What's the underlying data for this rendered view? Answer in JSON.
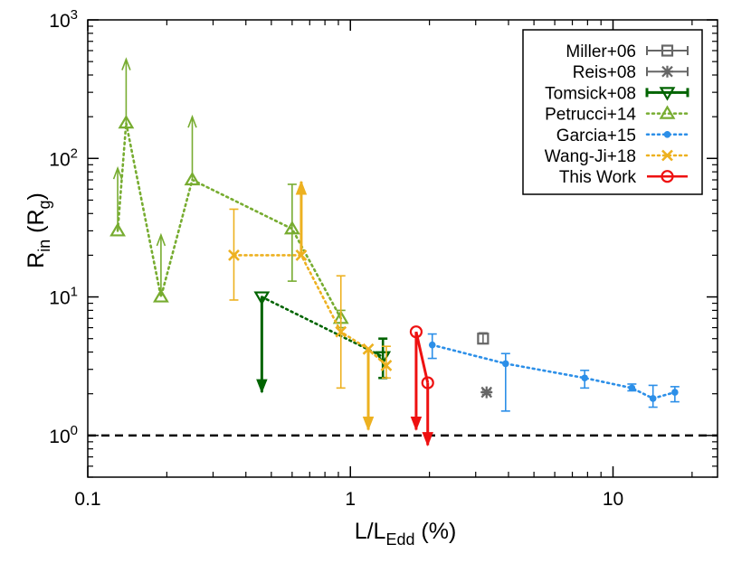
{
  "chart_data": {
    "type": "scatter",
    "xlabel": {
      "main": "L/L",
      "sub": "Edd",
      "suffix": " (%)"
    },
    "ylabel": {
      "main": "R",
      "sub": "in",
      "paren_open": " (R",
      "paren_sub": "g",
      "paren_close": ")"
    },
    "x_scale": "log",
    "y_scale": "log",
    "xlim": [
      0.1,
      25
    ],
    "ylim": [
      0.5,
      1000
    ],
    "x_ticks": [
      {
        "v": 0.1,
        "label": "0.1"
      },
      {
        "v": 1,
        "label": "1"
      },
      {
        "v": 10,
        "label": "10"
      }
    ],
    "y_ticks": [
      {
        "v": 1,
        "base": "10",
        "exp": "0"
      },
      {
        "v": 10,
        "base": "10",
        "exp": "1"
      },
      {
        "v": 100,
        "base": "10",
        "exp": "2"
      },
      {
        "v": 1000,
        "base": "10",
        "exp": "3"
      }
    ],
    "reference_line": {
      "y": 1,
      "style": "dashed",
      "color": "#000000"
    },
    "legend_position": "top-right",
    "series": [
      {
        "name": "Miller+06",
        "color": "#666666",
        "marker": "square",
        "connect": false,
        "points": [
          {
            "x": 3.2,
            "y": 5.0,
            "ylo": 4.6,
            "yhi": 5.5
          }
        ]
      },
      {
        "name": "Reis+08",
        "color": "#666666",
        "marker": "star",
        "connect": false,
        "points": [
          {
            "x": 3.3,
            "y": 2.05,
            "ylo": 1.98,
            "yhi": 2.12
          }
        ]
      },
      {
        "name": "Tomsick+08",
        "color": "#006400",
        "marker": "triangle-down",
        "connect": true,
        "points": [
          {
            "x": 0.46,
            "y": 10,
            "arrow": "down",
            "arrow_to": 2.05
          },
          {
            "x": 1.33,
            "y": 3.7,
            "ylo": 2.6,
            "yhi": 5.0
          }
        ]
      },
      {
        "name": "Petrucci+14",
        "color": "#77AC30",
        "marker": "triangle-up",
        "connect": true,
        "points": [
          {
            "x": 0.13,
            "y": 30,
            "arrow": "up",
            "arrow_to": 85
          },
          {
            "x": 0.14,
            "y": 180,
            "arrow": "up",
            "arrow_to": 520
          },
          {
            "x": 0.19,
            "y": 10,
            "arrow": "up",
            "arrow_to": 28
          },
          {
            "x": 0.25,
            "y": 70,
            "arrow": "up",
            "arrow_to": 200
          },
          {
            "x": 0.6,
            "y": 31,
            "ylo": 13,
            "yhi": 65
          },
          {
            "x": 0.92,
            "y": 7.0,
            "ylo": 6.0,
            "yhi": 8.0
          }
        ]
      },
      {
        "name": "Garcia+15",
        "color": "#2C8FE8",
        "marker": "dot",
        "connect": true,
        "points": [
          {
            "x": 2.05,
            "y": 4.5,
            "ylo": 3.6,
            "yhi": 5.4
          },
          {
            "x": 3.9,
            "y": 3.3,
            "ylo": 1.5,
            "yhi": 3.9
          },
          {
            "x": 7.8,
            "y": 2.6,
            "ylo": 2.2,
            "yhi": 2.95
          },
          {
            "x": 11.8,
            "y": 2.2,
            "ylo": 2.1,
            "yhi": 2.35
          },
          {
            "x": 14.2,
            "y": 1.85,
            "ylo": 1.6,
            "yhi": 2.3
          },
          {
            "x": 17.2,
            "y": 2.05,
            "ylo": 1.75,
            "yhi": 2.25
          }
        ]
      },
      {
        "name": "Wang-Ji+18",
        "color": "#EDB120",
        "marker": "cross",
        "connect": true,
        "points": [
          {
            "x": 0.36,
            "y": 20,
            "ylo": 9.5,
            "yhi": 43
          },
          {
            "x": 0.65,
            "y": 20,
            "arrow": "up",
            "arrow_to": 68
          },
          {
            "x": 0.92,
            "y": 5.6,
            "ylo": 2.2,
            "yhi": 14.2
          },
          {
            "x": 1.17,
            "y": 4.2,
            "arrow": "down",
            "arrow_to": 1.1
          },
          {
            "x": 1.37,
            "y": 3.2,
            "ylo": 2.6,
            "yhi": 4.4
          }
        ]
      },
      {
        "name": "This Work",
        "color": "#EE1111",
        "marker": "circle",
        "connect": true,
        "points": [
          {
            "x": 1.78,
            "y": 5.6,
            "arrow": "down",
            "arrow_to": 1.1
          },
          {
            "x": 1.97,
            "y": 2.4,
            "arrow": "down",
            "arrow_to": 0.85
          }
        ]
      }
    ]
  }
}
